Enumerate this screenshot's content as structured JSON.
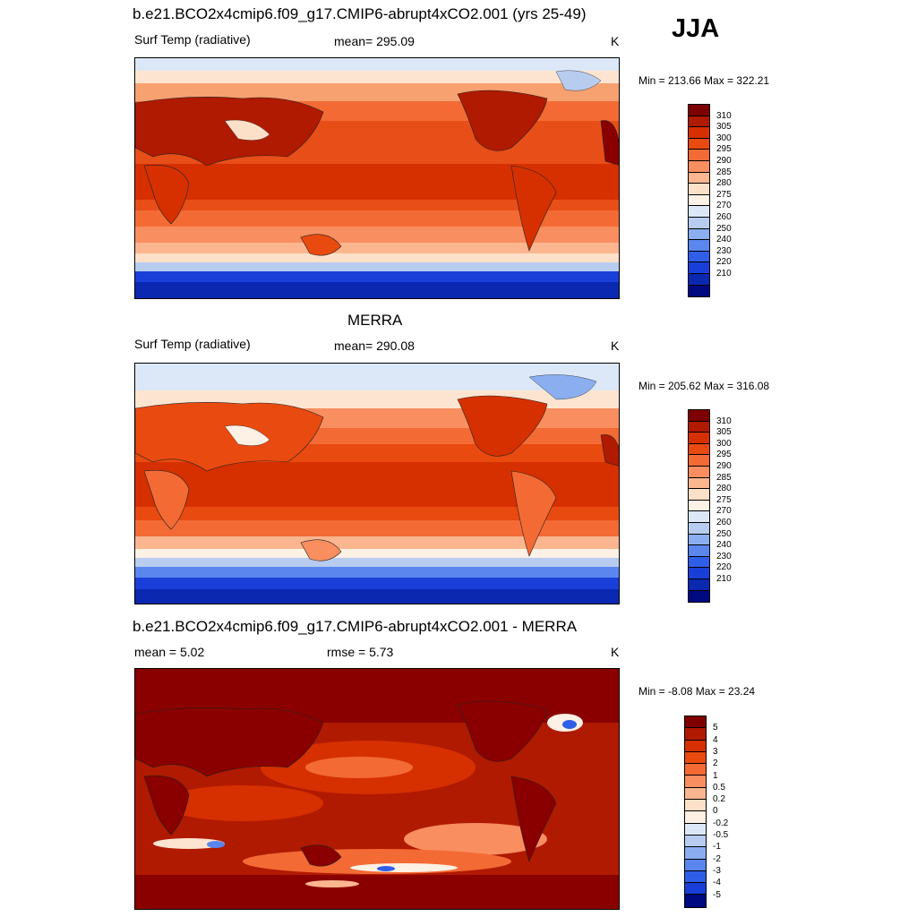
{
  "panels": [
    {
      "title": "b.e21.BCO2x4cmip6.f09_g17.CMIP6-abrupt4xCO2.001 (yrs 25-49)",
      "left_label": "Surf Temp (radiative)",
      "center_label": "mean= 295.09",
      "units": "K",
      "minmax": "Min = 213.66 Max = 322.21"
    },
    {
      "title": "MERRA",
      "left_label": "Surf Temp (radiative)",
      "center_label": "mean= 290.08",
      "units": "K",
      "minmax": "Min = 205.62 Max = 316.08"
    },
    {
      "title": "b.e21.BCO2x4cmip6.f09_g17.CMIP6-abrupt4xCO2.001 - MERRA",
      "left_label": "mean =   5.02",
      "center_label": "rmse =   5.73",
      "units": "K",
      "minmax": "Min =  -8.08 Max =  23.24"
    }
  ],
  "season": "JJA",
  "colorbar_temp": {
    "labels": [
      "310",
      "305",
      "300",
      "295",
      "290",
      "285",
      "280",
      "275",
      "270",
      "260",
      "250",
      "240",
      "230",
      "220",
      "210"
    ],
    "colors": [
      "#7f0000",
      "#b01a00",
      "#d63000",
      "#e94a10",
      "#f36a35",
      "#f98e60",
      "#fbb690",
      "#fde0c8",
      "#fdf0e4",
      "#dce8f8",
      "#b8ccf0",
      "#8aaef0",
      "#5a86ee",
      "#2f5ee8",
      "#1a3fd8",
      "#0a28b0",
      "#000a80"
    ]
  },
  "colorbar_diff": {
    "labels": [
      "5",
      "4",
      "3",
      "2",
      "1",
      "0.5",
      "0.2",
      "0",
      "-0.2",
      "-0.5",
      "-1",
      "-2",
      "-3",
      "-4",
      "-5"
    ],
    "colors": [
      "#7f0000",
      "#b01a00",
      "#d63000",
      "#e94a10",
      "#f36a35",
      "#f98e60",
      "#fbb690",
      "#fde0c8",
      "#fdf0e4",
      "#dce8f8",
      "#b8ccf0",
      "#8aaef0",
      "#5a86ee",
      "#2f5ee8",
      "#1a3fd8",
      "#000a80"
    ]
  },
  "palette": {
    "ice": "#1a38d0",
    "ocean_cold": "#4a72e8",
    "cool": "#c8dcf8",
    "pale": "#fde4d0",
    "warm": "#f7a070",
    "hot": "#e84e18",
    "hotter": "#d83a08",
    "darkred": "#8a0000",
    "land_outline": "#222222"
  }
}
